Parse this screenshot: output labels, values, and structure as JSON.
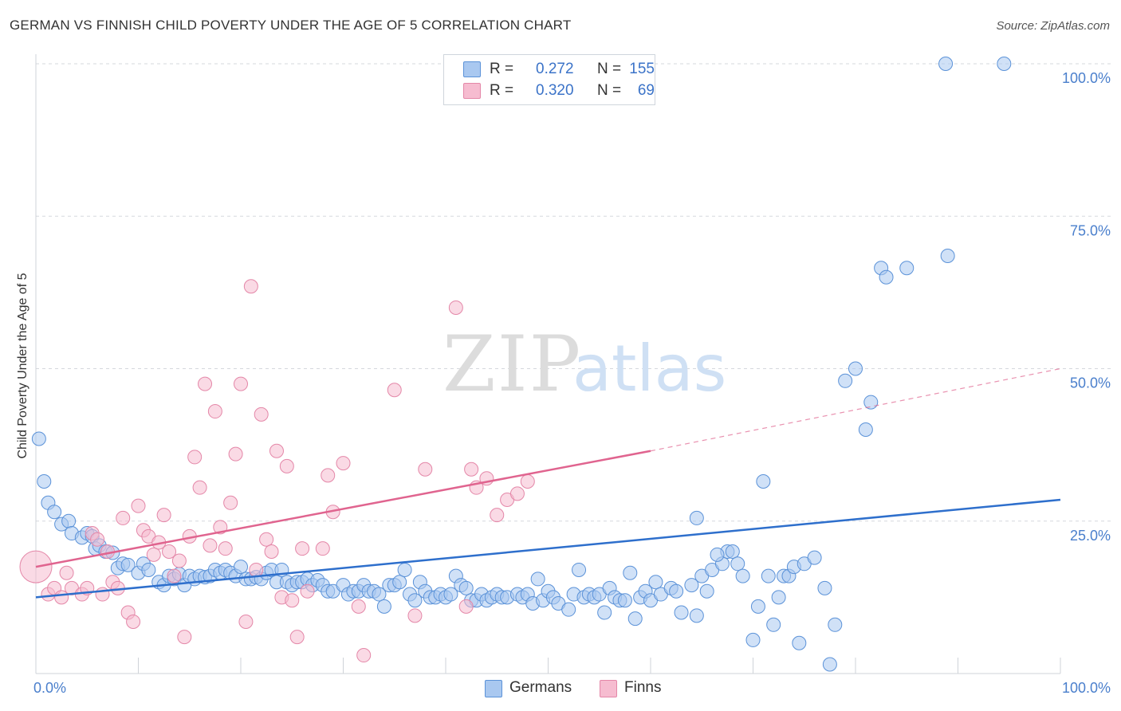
{
  "title": "GERMAN VS FINNISH CHILD POVERTY UNDER THE AGE OF 5 CORRELATION CHART",
  "source": "Source: ZipAtlas.com",
  "watermark": {
    "zip": "ZIP",
    "atlas": "atlas"
  },
  "legend": {
    "rows": [
      {
        "r_label": "R =",
        "r_value": "0.272",
        "n_label": "N =",
        "n_value": "155"
      },
      {
        "r_label": "R =",
        "r_value": "0.320",
        "n_label": "N =",
        "n_value": "69"
      }
    ]
  },
  "bottom_legend": {
    "germans": "Germans",
    "finns": "Finns"
  },
  "colors": {
    "germans_fill": "#a9c8f0",
    "germans_stroke": "#5b92d8",
    "germans_line": "#2e6fcc",
    "finns_fill": "#f6bcd0",
    "finns_stroke": "#e487a8",
    "finns_line": "#e0648f",
    "tick_label": "#4a7fcc",
    "grid": "#d5d8dd"
  },
  "chart_data": {
    "type": "scatter",
    "title": "GERMAN VS FINNISH CHILD POVERTY UNDER THE AGE OF 5 CORRELATION CHART",
    "xlabel": "",
    "ylabel": "Child Poverty Under the Age of 5",
    "xlim": [
      0,
      100
    ],
    "ylim": [
      0,
      100
    ],
    "x_tick_labels": [
      "0.0%",
      "100.0%"
    ],
    "y_tick_labels": [
      "25.0%",
      "50.0%",
      "75.0%",
      "100.0%"
    ],
    "y_ticks": [
      25,
      50,
      75,
      100
    ],
    "grid": true,
    "legend_position": "top-center",
    "series": [
      {
        "name": "Germans",
        "r": 0.272,
        "n": 155,
        "trend": {
          "x0": 0,
          "y0": 12.5,
          "x1": 100,
          "y1": 28.5
        },
        "points": [
          [
            0.3,
            38.5
          ],
          [
            0.8,
            31.5
          ],
          [
            1.2,
            28
          ],
          [
            1.8,
            26.5
          ],
          [
            2.5,
            24.5
          ],
          [
            3.2,
            25
          ],
          [
            3.5,
            23
          ],
          [
            4.5,
            22.3
          ],
          [
            5,
            23
          ],
          [
            5.5,
            22.5
          ],
          [
            5.8,
            20.5
          ],
          [
            6.2,
            21
          ],
          [
            6.8,
            20
          ],
          [
            7.5,
            19.8
          ],
          [
            8,
            17.3
          ],
          [
            8.5,
            18
          ],
          [
            9,
            17.8
          ],
          [
            10,
            16.5
          ],
          [
            10.5,
            18
          ],
          [
            11,
            17
          ],
          [
            12,
            15
          ],
          [
            12.5,
            14.5
          ],
          [
            13,
            16
          ],
          [
            13.5,
            15.5
          ],
          [
            14,
            16.3
          ],
          [
            14.5,
            14.5
          ],
          [
            15,
            16
          ],
          [
            15.5,
            15.5
          ],
          [
            16,
            16
          ],
          [
            16.5,
            15.8
          ],
          [
            17,
            16
          ],
          [
            17.5,
            17
          ],
          [
            18,
            16.5
          ],
          [
            18.5,
            17
          ],
          [
            19,
            16.5
          ],
          [
            19.5,
            16
          ],
          [
            20,
            17.5
          ],
          [
            20.5,
            15.5
          ],
          [
            21,
            15.5
          ],
          [
            21.5,
            15.8
          ],
          [
            22,
            15.5
          ],
          [
            22.5,
            16.5
          ],
          [
            23,
            17
          ],
          [
            23.5,
            15
          ],
          [
            24,
            17
          ],
          [
            24.5,
            15
          ],
          [
            25,
            14.5
          ],
          [
            25.5,
            15
          ],
          [
            26,
            15
          ],
          [
            26.5,
            15.5
          ],
          [
            27,
            14.5
          ],
          [
            27.5,
            15.3
          ],
          [
            28,
            14.5
          ],
          [
            28.5,
            13.5
          ],
          [
            29,
            13.5
          ],
          [
            30,
            14.5
          ],
          [
            30.5,
            13
          ],
          [
            31,
            13.5
          ],
          [
            31.5,
            13.5
          ],
          [
            32,
            14.5
          ],
          [
            32.5,
            13.5
          ],
          [
            33,
            13.5
          ],
          [
            33.5,
            13
          ],
          [
            34,
            11
          ],
          [
            34.5,
            14.5
          ],
          [
            35,
            14.5
          ],
          [
            35.5,
            15
          ],
          [
            36,
            17
          ],
          [
            36.5,
            13
          ],
          [
            37,
            12
          ],
          [
            37.5,
            15
          ],
          [
            38,
            13.5
          ],
          [
            38.5,
            12.5
          ],
          [
            39,
            12.5
          ],
          [
            39.5,
            13
          ],
          [
            40,
            12.5
          ],
          [
            40.5,
            13
          ],
          [
            41,
            16
          ],
          [
            41.5,
            14.5
          ],
          [
            42,
            14
          ],
          [
            42.5,
            12
          ],
          [
            43,
            12
          ],
          [
            43.5,
            13
          ],
          [
            44,
            12
          ],
          [
            44.5,
            12.5
          ],
          [
            45,
            13
          ],
          [
            45.5,
            12.5
          ],
          [
            46,
            12.5
          ],
          [
            47,
            13
          ],
          [
            47.5,
            12.5
          ],
          [
            48,
            13
          ],
          [
            48.5,
            11.5
          ],
          [
            49,
            15.5
          ],
          [
            49.5,
            12
          ],
          [
            50,
            13.5
          ],
          [
            50.5,
            12.5
          ],
          [
            51,
            11.5
          ],
          [
            52,
            10.5
          ],
          [
            52.5,
            13
          ],
          [
            53,
            17
          ],
          [
            53.5,
            12.5
          ],
          [
            54,
            13
          ],
          [
            54.5,
            12.5
          ],
          [
            55,
            13
          ],
          [
            55.5,
            10
          ],
          [
            56,
            14
          ],
          [
            56.5,
            12.5
          ],
          [
            57,
            12
          ],
          [
            57.5,
            12
          ],
          [
            58,
            16.5
          ],
          [
            58.5,
            9
          ],
          [
            59,
            12.5
          ],
          [
            59.5,
            13.5
          ],
          [
            60,
            12
          ],
          [
            60.5,
            15
          ],
          [
            61,
            13
          ],
          [
            62,
            14
          ],
          [
            62.5,
            13.5
          ],
          [
            63,
            10
          ],
          [
            64,
            14.5
          ],
          [
            64.5,
            9.5
          ],
          [
            65,
            16
          ],
          [
            65.5,
            13.5
          ],
          [
            66,
            17
          ],
          [
            67,
            18
          ],
          [
            67.5,
            20
          ],
          [
            68,
            20
          ],
          [
            68.5,
            18
          ],
          [
            69,
            16
          ],
          [
            70,
            5.5
          ],
          [
            70.5,
            11
          ],
          [
            71,
            31.5
          ],
          [
            71.5,
            16
          ],
          [
            72,
            8
          ],
          [
            72.5,
            12.5
          ],
          [
            73,
            16
          ],
          [
            73.5,
            16
          ],
          [
            74,
            17.5
          ],
          [
            74.5,
            5
          ],
          [
            75,
            18
          ],
          [
            76,
            19
          ],
          [
            77,
            14
          ],
          [
            77.5,
            1.5
          ],
          [
            78,
            8
          ],
          [
            79,
            48
          ],
          [
            80,
            50
          ],
          [
            81,
            40
          ],
          [
            81.5,
            44.5
          ],
          [
            82.5,
            66.5
          ],
          [
            83,
            65
          ],
          [
            85,
            66.5
          ],
          [
            89,
            68.5
          ],
          [
            88.8,
            100
          ],
          [
            94.5,
            100
          ],
          [
            64.5,
            25.5
          ],
          [
            66.5,
            19.5
          ]
        ]
      },
      {
        "name": "Finns",
        "r": 0.32,
        "n": 69,
        "trend": {
          "x0": 0,
          "y0": 17.5,
          "x1": 60,
          "y1": 36.5,
          "dash_to": {
            "x": 100,
            "y": 50
          }
        },
        "points": [
          [
            0,
            17.5
          ],
          [
            1.2,
            13
          ],
          [
            1.8,
            14
          ],
          [
            2.5,
            12.5
          ],
          [
            3,
            16.5
          ],
          [
            3.5,
            14
          ],
          [
            4.5,
            13
          ],
          [
            5,
            14
          ],
          [
            5.5,
            23
          ],
          [
            6,
            22
          ],
          [
            6.5,
            13
          ],
          [
            7,
            20
          ],
          [
            7.5,
            15
          ],
          [
            8,
            14
          ],
          [
            8.5,
            25.5
          ],
          [
            9,
            10
          ],
          [
            9.5,
            8.5
          ],
          [
            10,
            27.5
          ],
          [
            10.5,
            23.5
          ],
          [
            11,
            22.5
          ],
          [
            11.5,
            19.5
          ],
          [
            12,
            21.5
          ],
          [
            12.5,
            26
          ],
          [
            13,
            20
          ],
          [
            13.5,
            16
          ],
          [
            14,
            18.5
          ],
          [
            14.5,
            6
          ],
          [
            15,
            22.5
          ],
          [
            15.5,
            35.5
          ],
          [
            16,
            30.5
          ],
          [
            16.5,
            47.5
          ],
          [
            17,
            21
          ],
          [
            17.5,
            43
          ],
          [
            18,
            24
          ],
          [
            18.5,
            20.5
          ],
          [
            19,
            28
          ],
          [
            19.5,
            36
          ],
          [
            20,
            47.5
          ],
          [
            20.5,
            8.5
          ],
          [
            21,
            63.5
          ],
          [
            21.5,
            17
          ],
          [
            22,
            42.5
          ],
          [
            22.5,
            22
          ],
          [
            23,
            20
          ],
          [
            23.5,
            36.5
          ],
          [
            24,
            12.5
          ],
          [
            24.5,
            34
          ],
          [
            25,
            12
          ],
          [
            25.5,
            6
          ],
          [
            26,
            20.5
          ],
          [
            26.5,
            13.5
          ],
          [
            28,
            20.5
          ],
          [
            28.5,
            32.5
          ],
          [
            29,
            26.5
          ],
          [
            30,
            34.5
          ],
          [
            31.5,
            11
          ],
          [
            32,
            3
          ],
          [
            35,
            46.5
          ],
          [
            37,
            9.5
          ],
          [
            38,
            33.5
          ],
          [
            41,
            60
          ],
          [
            42,
            11
          ],
          [
            43,
            30.5
          ],
          [
            42.5,
            33.5
          ],
          [
            44,
            32
          ],
          [
            45,
            26
          ],
          [
            46,
            28.5
          ],
          [
            47,
            29.5
          ],
          [
            48,
            31.5
          ]
        ]
      }
    ]
  }
}
